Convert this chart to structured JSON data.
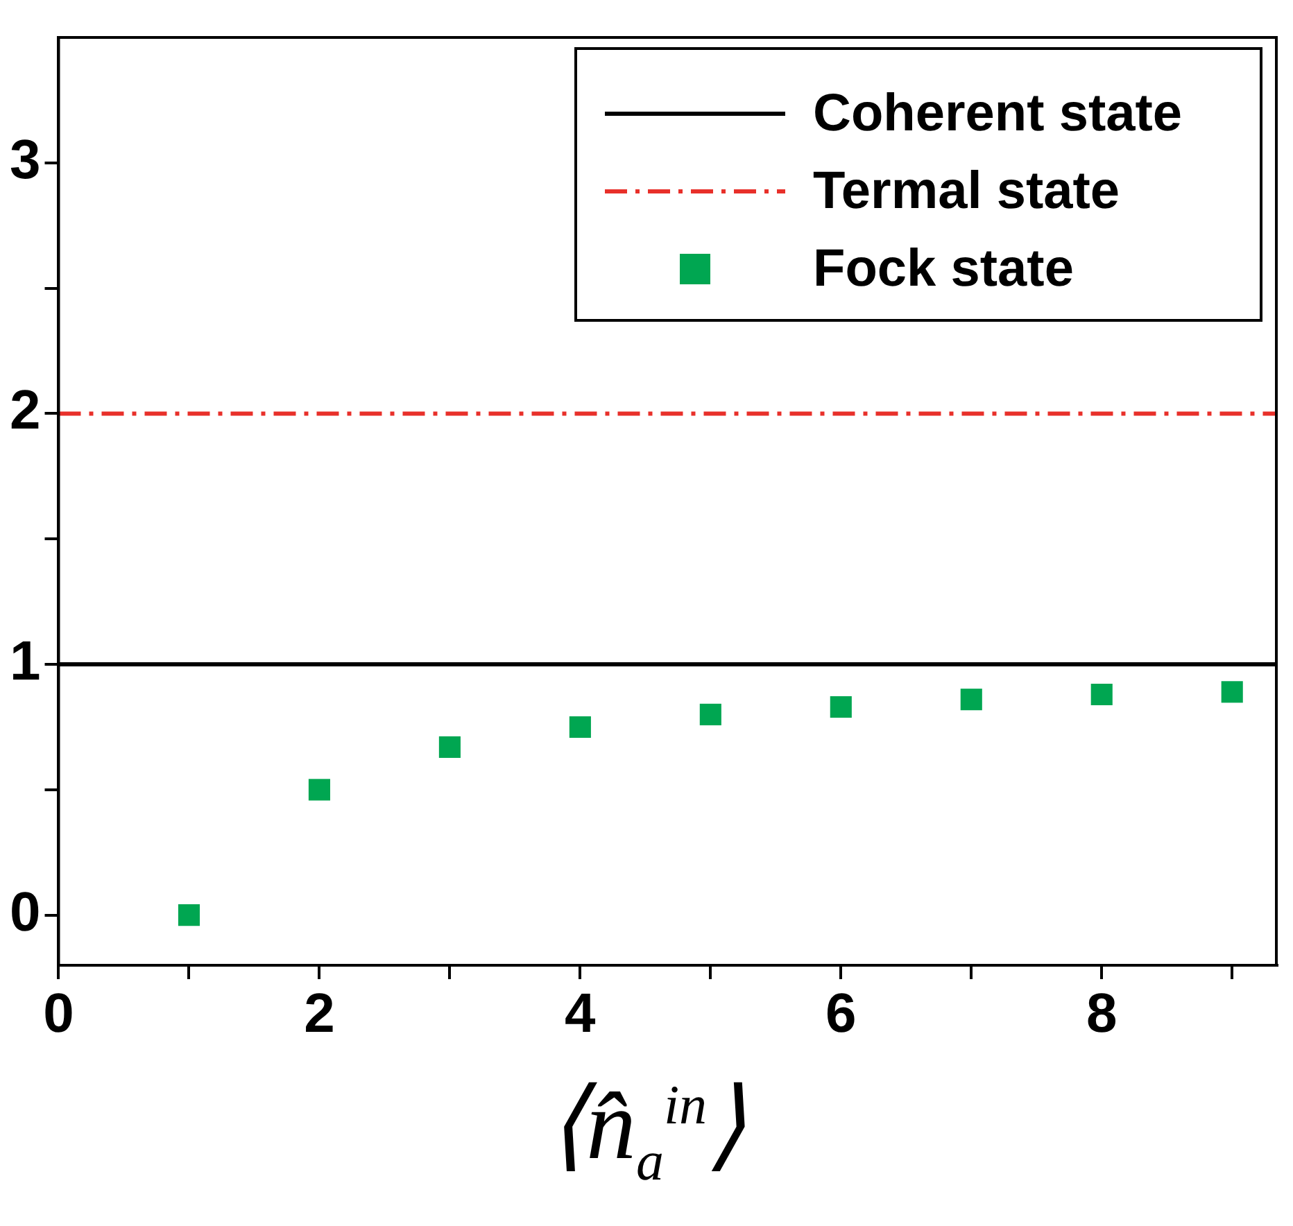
{
  "chart_data": {
    "type": "scatter",
    "xlabel": "⟨n̂$_{a}$$^{in}$⟩",
    "xlim": [
      0,
      9.35
    ],
    "ylim": [
      -0.2,
      3.5
    ],
    "xticks": [
      0,
      {
        "value": 1,
        "label": null
      },
      2,
      {
        "value": 3,
        "label": null
      },
      4,
      {
        "value": 5,
        "label": null
      },
      6,
      {
        "value": 7,
        "label": null
      },
      8,
      {
        "value": 9,
        "label": null
      }
    ],
    "yticks": [
      0,
      {
        "value": 0.5,
        "label": null
      },
      1,
      {
        "value": 1.5,
        "label": null
      },
      2,
      {
        "value": 2.5,
        "label": null
      },
      3
    ],
    "grid": false,
    "legend": "top right",
    "series": [
      {
        "name": "Coherent state",
        "type": "line",
        "line_style": "solid",
        "color": "#000000",
        "x": [
          0,
          9.35
        ],
        "values": [
          1,
          1
        ]
      },
      {
        "name": "Termal state",
        "type": "line",
        "line_style": "dashdot",
        "color": "#e8302a",
        "x": [
          0,
          9.35
        ],
        "values": [
          2,
          2
        ]
      },
      {
        "name": "Fock state",
        "marker": "square",
        "color": "#00a651",
        "x": [
          1,
          2,
          3,
          4,
          5,
          6,
          7,
          8,
          9
        ],
        "values": [
          0,
          0.5,
          0.67,
          0.75,
          0.8,
          0.83,
          0.86,
          0.88,
          0.89
        ]
      }
    ]
  }
}
